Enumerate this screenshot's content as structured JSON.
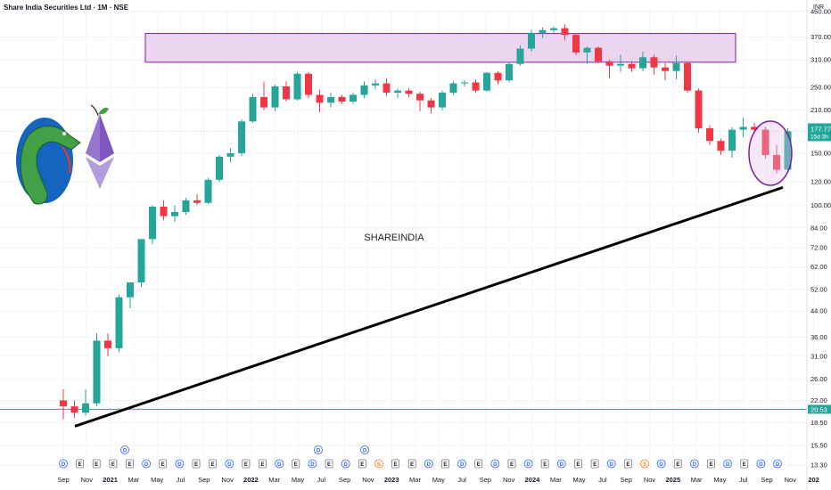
{
  "header": {
    "title": "Share India Securities Ltd · 1M · NSE",
    "currency": "INR"
  },
  "watermark": "SHAREINDIA",
  "colors": {
    "up": "#26a69a",
    "down": "#f23645",
    "zone_fill": "#e1bee7",
    "zone_border": "#7b1fa2",
    "trendline": "#000000",
    "hline": "#26a69a",
    "price_label_bg": "#26a69a",
    "ref_label_bg": "#26a69a"
  },
  "price_tag": {
    "price": "177.77",
    "countdown": "15d 3h"
  },
  "ref_line": {
    "value": 20.53,
    "label": "20.53"
  },
  "chart_data": {
    "type": "candlestick",
    "yscale": "log",
    "ylim": [
      12.6,
      460
    ],
    "y_ticks": [
      "450.00",
      "370.00",
      "310.00",
      "250.00",
      "210.00",
      "150.00",
      "120.00",
      "100.00",
      "84.00",
      "72.00",
      "62.00",
      "52.00",
      "44.00",
      "36.00",
      "31.00",
      "26.00",
      "22.00",
      "18.50",
      "15.50",
      "13.30"
    ],
    "x_ticks": [
      "Sep",
      "Nov",
      "2021",
      "Mar",
      "May",
      "Jul",
      "Sep",
      "Nov",
      "2022",
      "Mar",
      "May",
      "Jul",
      "Sep",
      "Nov",
      "2023",
      "Mar",
      "May",
      "Jul",
      "Sep",
      "Nov",
      "2024",
      "Mar",
      "May",
      "Jul",
      "Sep",
      "Nov",
      "2025",
      "Mar",
      "May",
      "Jul",
      "Sep",
      "Nov",
      "202"
    ],
    "candles": [
      {
        "o": 22,
        "h": 24,
        "l": 19,
        "c": 21
      },
      {
        "o": 21,
        "h": 22,
        "l": 19.2,
        "c": 20
      },
      {
        "o": 20,
        "h": 24,
        "l": 19.5,
        "c": 21.5
      },
      {
        "o": 21.5,
        "h": 37,
        "l": 21,
        "c": 35
      },
      {
        "o": 35,
        "h": 37,
        "l": 31,
        "c": 33
      },
      {
        "o": 33,
        "h": 50,
        "l": 32,
        "c": 49
      },
      {
        "o": 49,
        "h": 54,
        "l": 45,
        "c": 55
      },
      {
        "o": 55,
        "h": 75,
        "l": 53,
        "c": 77
      },
      {
        "o": 77,
        "h": 100,
        "l": 74,
        "c": 99
      },
      {
        "o": 99,
        "h": 104,
        "l": 89,
        "c": 92
      },
      {
        "o": 92,
        "h": 100,
        "l": 88,
        "c": 95
      },
      {
        "o": 95,
        "h": 106,
        "l": 93,
        "c": 104
      },
      {
        "o": 104,
        "h": 109,
        "l": 100,
        "c": 102
      },
      {
        "o": 102,
        "h": 124,
        "l": 101,
        "c": 122
      },
      {
        "o": 122,
        "h": 148,
        "l": 120,
        "c": 146
      },
      {
        "o": 146,
        "h": 156,
        "l": 140,
        "c": 150
      },
      {
        "o": 150,
        "h": 195,
        "l": 147,
        "c": 192
      },
      {
        "o": 192,
        "h": 238,
        "l": 190,
        "c": 232
      },
      {
        "o": 232,
        "h": 262,
        "l": 210,
        "c": 214
      },
      {
        "o": 214,
        "h": 256,
        "l": 208,
        "c": 252
      },
      {
        "o": 252,
        "h": 262,
        "l": 224,
        "c": 228
      },
      {
        "o": 228,
        "h": 282,
        "l": 226,
        "c": 278
      },
      {
        "o": 278,
        "h": 282,
        "l": 230,
        "c": 236
      },
      {
        "o": 236,
        "h": 245,
        "l": 206,
        "c": 222
      },
      {
        "o": 222,
        "h": 240,
        "l": 214,
        "c": 232
      },
      {
        "o": 232,
        "h": 236,
        "l": 220,
        "c": 224
      },
      {
        "o": 224,
        "h": 240,
        "l": 220,
        "c": 236
      },
      {
        "o": 236,
        "h": 262,
        "l": 230,
        "c": 254
      },
      {
        "o": 254,
        "h": 266,
        "l": 246,
        "c": 258
      },
      {
        "o": 258,
        "h": 268,
        "l": 234,
        "c": 240
      },
      {
        "o": 240,
        "h": 248,
        "l": 230,
        "c": 244
      },
      {
        "o": 244,
        "h": 248,
        "l": 232,
        "c": 238
      },
      {
        "o": 238,
        "h": 242,
        "l": 208,
        "c": 226
      },
      {
        "o": 226,
        "h": 230,
        "l": 204,
        "c": 214
      },
      {
        "o": 214,
        "h": 244,
        "l": 210,
        "c": 240
      },
      {
        "o": 240,
        "h": 262,
        "l": 236,
        "c": 258
      },
      {
        "o": 258,
        "h": 264,
        "l": 252,
        "c": 260
      },
      {
        "o": 260,
        "h": 266,
        "l": 240,
        "c": 244
      },
      {
        "o": 244,
        "h": 282,
        "l": 242,
        "c": 280
      },
      {
        "o": 280,
        "h": 284,
        "l": 256,
        "c": 264
      },
      {
        "o": 264,
        "h": 305,
        "l": 260,
        "c": 300
      },
      {
        "o": 300,
        "h": 346,
        "l": 296,
        "c": 338
      },
      {
        "o": 338,
        "h": 392,
        "l": 330,
        "c": 382
      },
      {
        "o": 382,
        "h": 398,
        "l": 368,
        "c": 390
      },
      {
        "o": 390,
        "h": 402,
        "l": 382,
        "c": 396
      },
      {
        "o": 396,
        "h": 408,
        "l": 360,
        "c": 376
      },
      {
        "o": 376,
        "h": 380,
        "l": 322,
        "c": 328
      },
      {
        "o": 328,
        "h": 344,
        "l": 300,
        "c": 340
      },
      {
        "o": 340,
        "h": 344,
        "l": 302,
        "c": 306
      },
      {
        "o": 306,
        "h": 310,
        "l": 268,
        "c": 296
      },
      {
        "o": 296,
        "h": 322,
        "l": 282,
        "c": 300
      },
      {
        "o": 300,
        "h": 306,
        "l": 282,
        "c": 290
      },
      {
        "o": 290,
        "h": 330,
        "l": 284,
        "c": 316
      },
      {
        "o": 316,
        "h": 322,
        "l": 276,
        "c": 292
      },
      {
        "o": 292,
        "h": 302,
        "l": 264,
        "c": 284
      },
      {
        "o": 284,
        "h": 320,
        "l": 266,
        "c": 302
      },
      {
        "o": 302,
        "h": 306,
        "l": 240,
        "c": 244
      },
      {
        "o": 244,
        "h": 248,
        "l": 176,
        "c": 182
      },
      {
        "o": 182,
        "h": 186,
        "l": 160,
        "c": 165
      },
      {
        "o": 165,
        "h": 168,
        "l": 148,
        "c": 153
      },
      {
        "o": 153,
        "h": 184,
        "l": 145,
        "c": 180
      },
      {
        "o": 180,
        "h": 198,
        "l": 170,
        "c": 184
      },
      {
        "o": 184,
        "h": 190,
        "l": 176,
        "c": 180
      },
      {
        "o": 180,
        "h": 184,
        "l": 144,
        "c": 148
      },
      {
        "o": 148,
        "h": 160,
        "l": 128,
        "c": 132
      },
      {
        "o": 132,
        "h": 182,
        "l": 130,
        "c": 177.77
      }
    ],
    "zone": {
      "top": 380,
      "bottom": 304,
      "from_index": 0,
      "to_index": 65
    },
    "trendline": {
      "from": {
        "index": 0,
        "value": 18.0
      },
      "to": {
        "index": 66,
        "value": 115
      }
    },
    "events": [
      "D",
      "E",
      "E",
      "E",
      "E",
      "D",
      "E",
      "D",
      "E",
      "E",
      "D",
      "E",
      "E",
      "D",
      "E",
      "D",
      "E",
      "D",
      "E",
      "S",
      "E",
      "E",
      "D",
      "E",
      "D",
      "E",
      "D",
      "E",
      "D",
      "E",
      "D",
      "E",
      "E",
      "D",
      "E",
      "S",
      "D",
      "E",
      "D",
      "E",
      "D",
      "E",
      "D",
      "D"
    ]
  }
}
